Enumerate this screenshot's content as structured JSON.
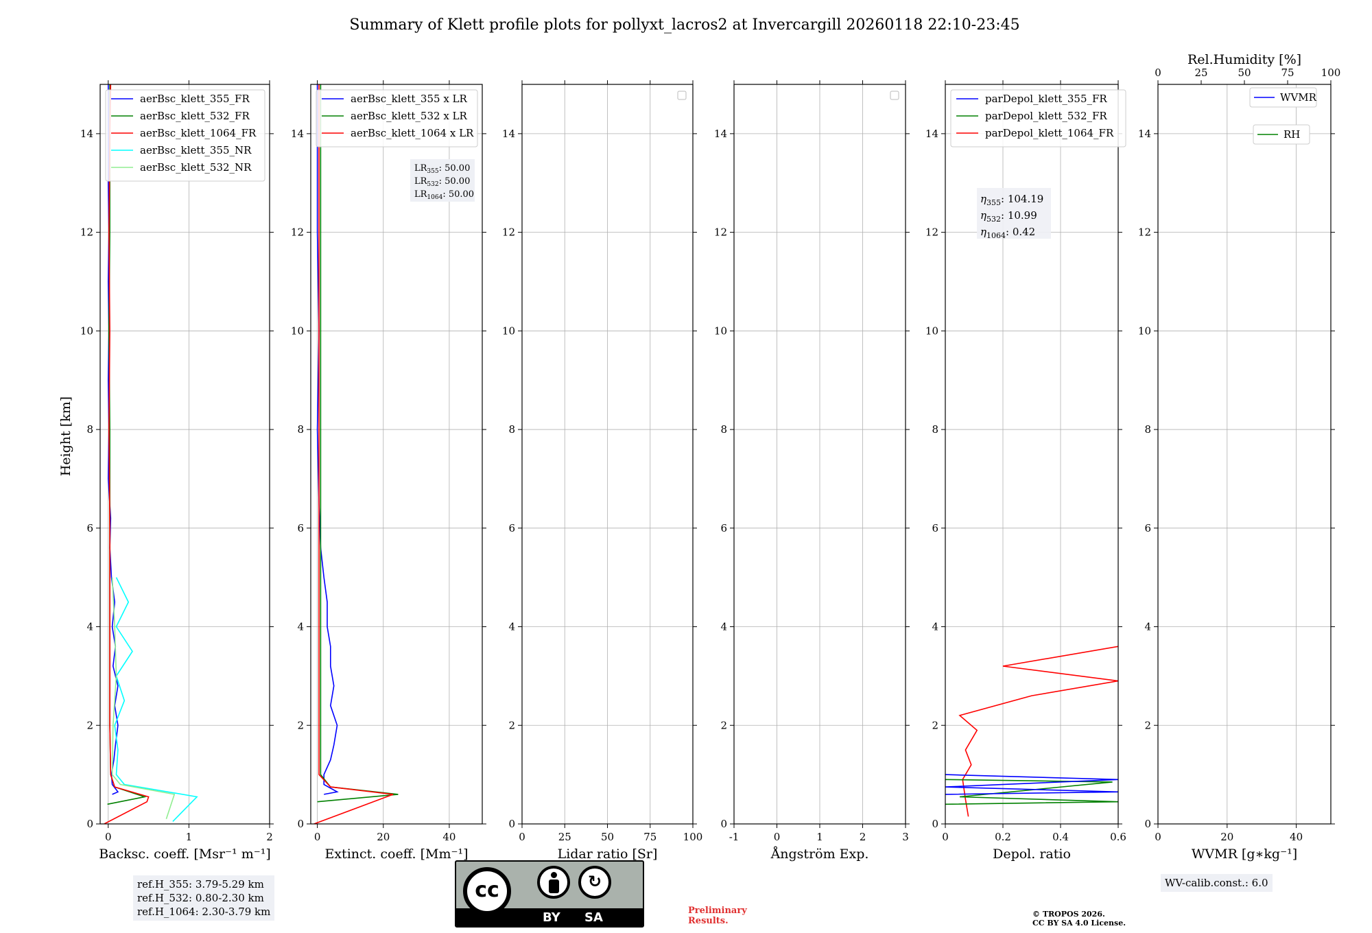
{
  "chart_data": {
    "title": "Summary of Klett profile plots for pollyxt_lacros2 at Invercargill 20260118 22:10-23:45",
    "ylabel": "Height [km]",
    "ylim": [
      0,
      15
    ],
    "yticks": [
      0,
      2,
      4,
      6,
      8,
      10,
      12,
      14
    ],
    "panels": [
      {
        "id": "bsc",
        "type": "line",
        "xlabel": "Backsc. coeff. [Msr⁻¹ m⁻¹]",
        "xlim": [
          -0.1,
          2
        ],
        "xticks": [
          0,
          1,
          2
        ],
        "legend": [
          "aerBsc_klett_355_FR",
          "aerBsc_klett_532_FR",
          "aerBsc_klett_1064_FR",
          "aerBsc_klett_355_NR",
          "aerBsc_klett_532_NR"
        ],
        "series": [
          {
            "name": "aerBsc_klett_355_FR",
            "color": "#0000ff",
            "points": [
              [
                0.05,
                0.6
              ],
              [
                0.12,
                0.65
              ],
              [
                0.05,
                0.8
              ],
              [
                0.04,
                1.0
              ],
              [
                0.07,
                1.3
              ],
              [
                0.09,
                1.6
              ],
              [
                0.12,
                2.0
              ],
              [
                0.08,
                2.4
              ],
              [
                0.12,
                2.8
              ],
              [
                0.06,
                3.2
              ],
              [
                0.09,
                3.6
              ],
              [
                0.05,
                4.0
              ],
              [
                0.08,
                4.5
              ],
              [
                0.04,
                5.0
              ],
              [
                0.02,
                5.6
              ],
              [
                0.03,
                6.2
              ],
              [
                0.0,
                7.0
              ],
              [
                0.01,
                8.0
              ],
              [
                0.0,
                9.0
              ],
              [
                0.01,
                10.0
              ],
              [
                0.0,
                11.0
              ],
              [
                0.01,
                12.0
              ],
              [
                0.0,
                13.0
              ],
              [
                0.0,
                14.0
              ],
              [
                0.0,
                15.0
              ]
            ]
          },
          {
            "name": "aerBsc_klett_532_FR",
            "color": "#008000",
            "points": [
              [
                -0.01,
                0.4
              ],
              [
                0.45,
                0.55
              ],
              [
                0.08,
                0.75
              ],
              [
                0.03,
                1.0
              ],
              [
                0.02,
                2.0
              ],
              [
                0.02,
                4.0
              ],
              [
                0.02,
                6.0
              ],
              [
                0.02,
                8.0
              ],
              [
                0.01,
                10.0
              ],
              [
                0.02,
                12.0
              ],
              [
                0.02,
                14.0
              ],
              [
                0.02,
                15.0
              ]
            ]
          },
          {
            "name": "aerBsc_klett_1064_FR",
            "color": "#ff0000",
            "points": [
              [
                -0.05,
                0.0
              ],
              [
                0.48,
                0.45
              ],
              [
                0.5,
                0.55
              ],
              [
                0.08,
                0.75
              ],
              [
                0.03,
                1.0
              ],
              [
                0.02,
                2.0
              ],
              [
                0.02,
                4.0
              ],
              [
                0.02,
                6.0
              ],
              [
                0.01,
                8.0
              ],
              [
                0.02,
                10.0
              ],
              [
                0.01,
                12.0
              ],
              [
                0.02,
                14.0
              ],
              [
                0.03,
                15.0
              ]
            ]
          },
          {
            "name": "aerBsc_klett_355_NR",
            "color": "#00ffff",
            "points": [
              [
                0.8,
                0.05
              ],
              [
                1.1,
                0.55
              ],
              [
                0.2,
                0.8
              ],
              [
                0.1,
                1.0
              ],
              [
                0.12,
                1.5
              ],
              [
                0.08,
                2.0
              ],
              [
                0.2,
                2.5
              ],
              [
                0.1,
                3.0
              ],
              [
                0.3,
                3.5
              ],
              [
                0.1,
                4.0
              ],
              [
                0.25,
                4.5
              ],
              [
                0.1,
                5.0
              ]
            ]
          },
          {
            "name": "aerBsc_klett_532_NR",
            "color": "#90ee90",
            "points": [
              [
                0.72,
                0.1
              ],
              [
                0.82,
                0.6
              ],
              [
                0.15,
                0.8
              ],
              [
                0.05,
                1.0
              ],
              [
                0.06,
                2.0
              ],
              [
                0.1,
                3.0
              ],
              [
                0.08,
                4.0
              ],
              [
                0.05,
                5.0
              ]
            ]
          }
        ],
        "annotation": [
          "ref.H_355: 3.79-5.29 km",
          "ref.H_532: 0.80-2.30 km",
          "ref.H_1064: 2.30-3.79 km"
        ]
      },
      {
        "id": "ext",
        "type": "line",
        "xlabel": "Extinct. coeff. [Mm⁻¹]",
        "xlim": [
          -2,
          50
        ],
        "xticks": [
          0,
          20,
          40
        ],
        "legend": [
          "aerBsc_klett_355 x LR",
          "aerBsc_klett_532 x LR",
          "aerBsc_klett_1064 x LR"
        ],
        "series": [
          {
            "name": "aerBsc_klett_355 x LR",
            "color": "#0000ff",
            "points": [
              [
                2,
                0.6
              ],
              [
                6,
                0.65
              ],
              [
                2,
                0.8
              ],
              [
                2,
                1.0
              ],
              [
                4,
                1.3
              ],
              [
                5,
                1.6
              ],
              [
                6,
                2.0
              ],
              [
                4,
                2.4
              ],
              [
                5,
                2.8
              ],
              [
                4,
                3.2
              ],
              [
                4,
                3.6
              ],
              [
                3,
                4.0
              ],
              [
                3,
                4.5
              ],
              [
                2,
                5.0
              ],
              [
                1,
                5.6
              ],
              [
                0.5,
                6.5
              ],
              [
                0,
                8.0
              ],
              [
                0.5,
                10.0
              ],
              [
                0,
                12.0
              ],
              [
                0,
                14.0
              ],
              [
                0,
                15.0
              ]
            ]
          },
          {
            "name": "aerBsc_klett_532 x LR",
            "color": "#008000",
            "points": [
              [
                0,
                0.45
              ],
              [
                24.5,
                0.6
              ],
              [
                4,
                0.75
              ],
              [
                1,
                1.0
              ],
              [
                1,
                4.0
              ],
              [
                1,
                8.0
              ],
              [
                1,
                12.0
              ],
              [
                1,
                14.0
              ],
              [
                1,
                15.0
              ]
            ]
          },
          {
            "name": "aerBsc_klett_1064 x LR",
            "color": "#ff0000",
            "points": [
              [
                -1,
                0.0
              ],
              [
                23,
                0.6
              ],
              [
                4,
                0.75
              ],
              [
                0.5,
                1.0
              ],
              [
                0.5,
                4.0
              ],
              [
                0.5,
                8.0
              ],
              [
                0.5,
                12.0
              ],
              [
                0.5,
                15.0
              ]
            ]
          }
        ],
        "lr_labels": [
          {
            "sym": "LR",
            "sub": "355",
            "value": "50.00"
          },
          {
            "sym": "LR",
            "sub": "532",
            "value": "50.00"
          },
          {
            "sym": "LR",
            "sub": "1064",
            "value": "50.00"
          }
        ]
      },
      {
        "id": "lr",
        "type": "line",
        "xlabel": "Lidar ratio [Sr]",
        "xlim": [
          0,
          100
        ],
        "xticks": [
          0,
          25,
          50,
          75,
          100
        ],
        "series": []
      },
      {
        "id": "ang",
        "type": "line",
        "xlabel": "Ångström Exp.",
        "xlim": [
          -1,
          3
        ],
        "xticks": [
          -1,
          0,
          1,
          2,
          3
        ],
        "series": []
      },
      {
        "id": "dep",
        "type": "line",
        "xlabel": "Depol. ratio",
        "xlim": [
          0,
          0.6
        ],
        "xticks": [
          0.0,
          0.2,
          0.4,
          0.6
        ],
        "legend": [
          "parDepol_klett_355_FR",
          "parDepol_klett_532_FR",
          "parDepol_klett_1064_FR"
        ],
        "series": [
          {
            "name": "parDepol_klett_1064_FR",
            "color": "#ff0000",
            "points": [
              [
                0.08,
                0.15
              ],
              [
                0.07,
                0.5
              ],
              [
                0.06,
                0.9
              ],
              [
                0.09,
                1.2
              ],
              [
                0.07,
                1.5
              ],
              [
                0.11,
                1.9
              ],
              [
                0.05,
                2.2
              ],
              [
                0.3,
                2.6
              ],
              [
                0.6,
                2.9
              ],
              [
                0.2,
                3.2
              ],
              [
                0.6,
                3.6
              ]
            ]
          },
          {
            "name": "parDepol_klett_532_FR",
            "color": "#008000",
            "points": [
              [
                0.0,
                0.4
              ],
              [
                0.6,
                0.45
              ],
              [
                0.05,
                0.55
              ],
              [
                0.58,
                0.85
              ],
              [
                0.0,
                0.9
              ]
            ]
          },
          {
            "name": "parDepol_klett_355_FR",
            "color": "#0000ff",
            "points": [
              [
                0.0,
                0.6
              ],
              [
                0.6,
                0.65
              ],
              [
                0.0,
                0.75
              ],
              [
                0.6,
                0.9
              ],
              [
                0.0,
                1.0
              ]
            ]
          }
        ],
        "eta_labels": [
          {
            "sym": "η",
            "sub": "355",
            "value": "104.19"
          },
          {
            "sym": "η",
            "sub": "532",
            "value": "10.99"
          },
          {
            "sym": "η",
            "sub": "1064",
            "value": "0.42"
          }
        ]
      },
      {
        "id": "wv",
        "type": "line",
        "xlabel": "WVMR [g∗kg⁻¹]",
        "xlim": [
          0,
          50
        ],
        "xticks": [
          0,
          20,
          40
        ],
        "top_xlabel": "Rel.Humidity [%]",
        "top_xlim": [
          0,
          100
        ],
        "top_xticks": [
          0,
          25,
          50,
          75,
          100
        ],
        "legend": [
          "WVMR",
          "RH"
        ],
        "series": [],
        "annotation": "WV-calib.const.: 6.0"
      }
    ]
  },
  "license": {
    "by": "BY",
    "sa": "SA",
    "cc": "cc"
  },
  "preliminary": {
    "line1": "Preliminary",
    "line2": "Results."
  },
  "copyright": {
    "line1": "© TROPOS 2026.",
    "line2": "CC BY SA 4.0 License."
  },
  "colors": {
    "blue": "#0000ff",
    "green": "#008000",
    "red": "#ff0000",
    "cyan": "#00ffff",
    "lightgreen": "#90ee90"
  }
}
